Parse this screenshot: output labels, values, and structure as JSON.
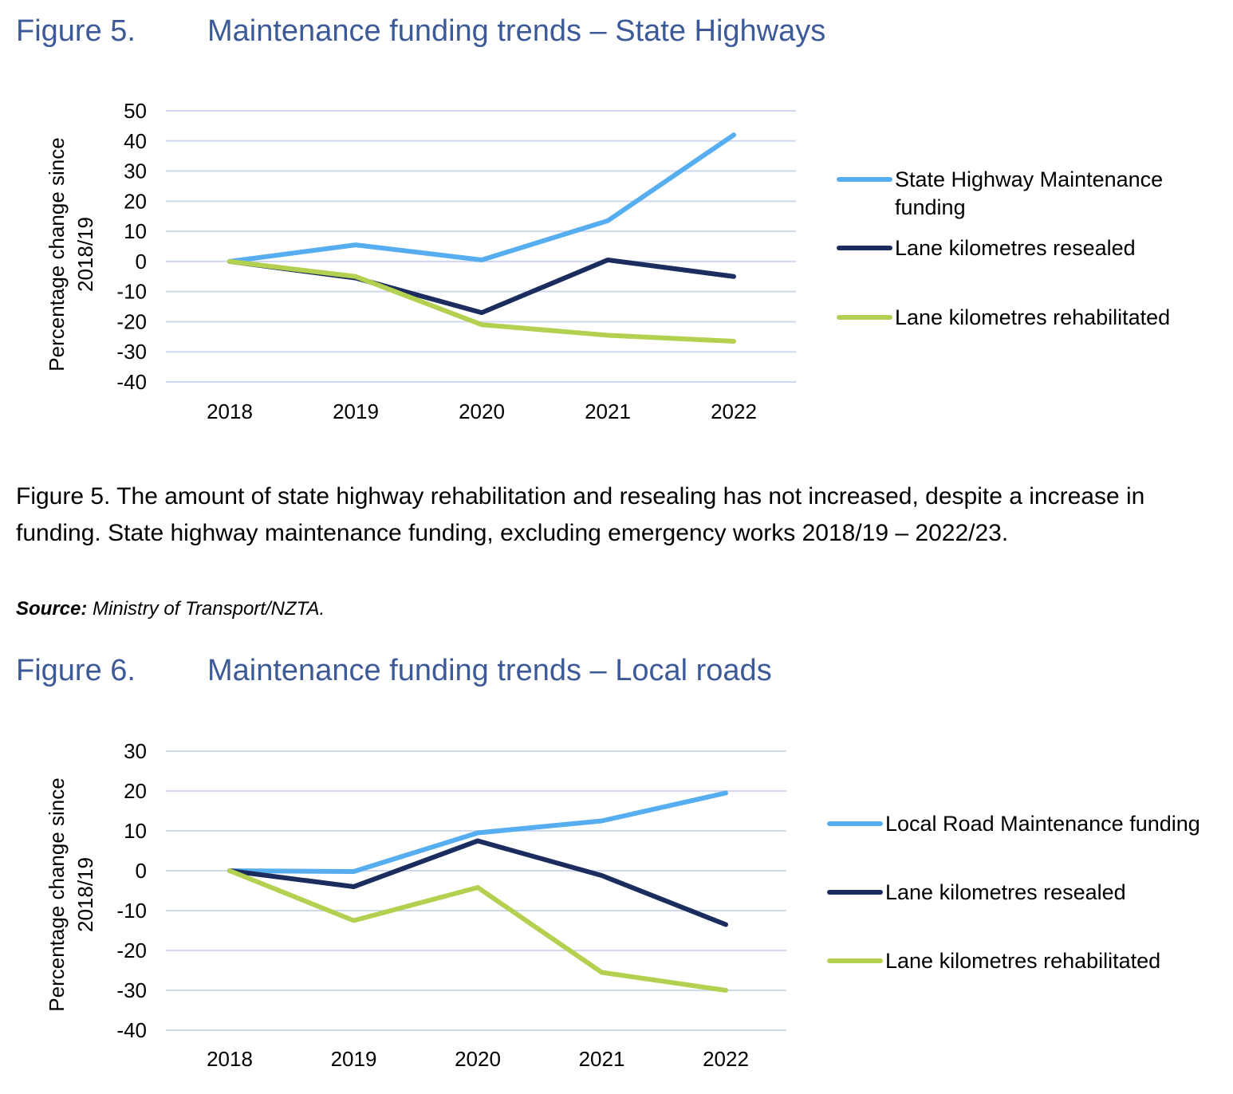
{
  "figure5": {
    "number": "Figure 5.",
    "title": "Maintenance funding trends – State Highways",
    "caption": "Figure 5. The amount of state highway rehabilitation and resealing has not increased, despite a increase in funding. State highway maintenance funding, excluding emergency works 2018/19 – 2022/23.",
    "source_label": "Source:",
    "source_text": " Ministry of Transport/NZTA."
  },
  "figure6": {
    "number": "Figure 6.",
    "title": "Maintenance funding trends – Local roads"
  },
  "chart_data": [
    {
      "type": "line",
      "categories": [
        "2018",
        "2019",
        "2020",
        "2021",
        "2022"
      ],
      "ylabel": "Percentage change since 2018/19",
      "ylim": [
        -40,
        50
      ],
      "yticks": [
        "50",
        "40",
        "30",
        "20",
        "10",
        "0",
        "-10",
        "-20",
        "-30",
        "-40"
      ],
      "grid": true,
      "legend_position": "right",
      "series": [
        {
          "name": "State Highway Maintenance funding",
          "color": "#56adef",
          "values": [
            0,
            5.5,
            0.5,
            13.5,
            42
          ]
        },
        {
          "name": "Lane kilometres resealed",
          "color": "#1a2d5e",
          "values": [
            0,
            -5.5,
            -17,
            0.5,
            -5
          ]
        },
        {
          "name": "Lane kilometres rehabilitated",
          "color": "#b4d050",
          "values": [
            0,
            -5,
            -21,
            -24.5,
            -26.5
          ]
        }
      ]
    },
    {
      "type": "line",
      "categories": [
        "2018",
        "2019",
        "2020",
        "2021",
        "2022"
      ],
      "ylabel": "Percentage change since 2018/19",
      "ylim": [
        -40,
        30
      ],
      "yticks": [
        "30",
        "20",
        "10",
        "0",
        "-10",
        "-20",
        "-30",
        "-40"
      ],
      "grid": true,
      "legend_position": "right",
      "series": [
        {
          "name": "Local Road Maintenance funding",
          "color": "#56adef",
          "values": [
            0,
            -0.2,
            9.5,
            12.5,
            19.5
          ]
        },
        {
          "name": "Lane kilometres resealed",
          "color": "#1a2d5e",
          "values": [
            0,
            -4,
            7.5,
            -1.2,
            -13.5
          ]
        },
        {
          "name": "Lane kilometres rehabilitated",
          "color": "#b4d050",
          "values": [
            0,
            -12.5,
            -4.2,
            -25.5,
            -30
          ]
        }
      ]
    }
  ]
}
